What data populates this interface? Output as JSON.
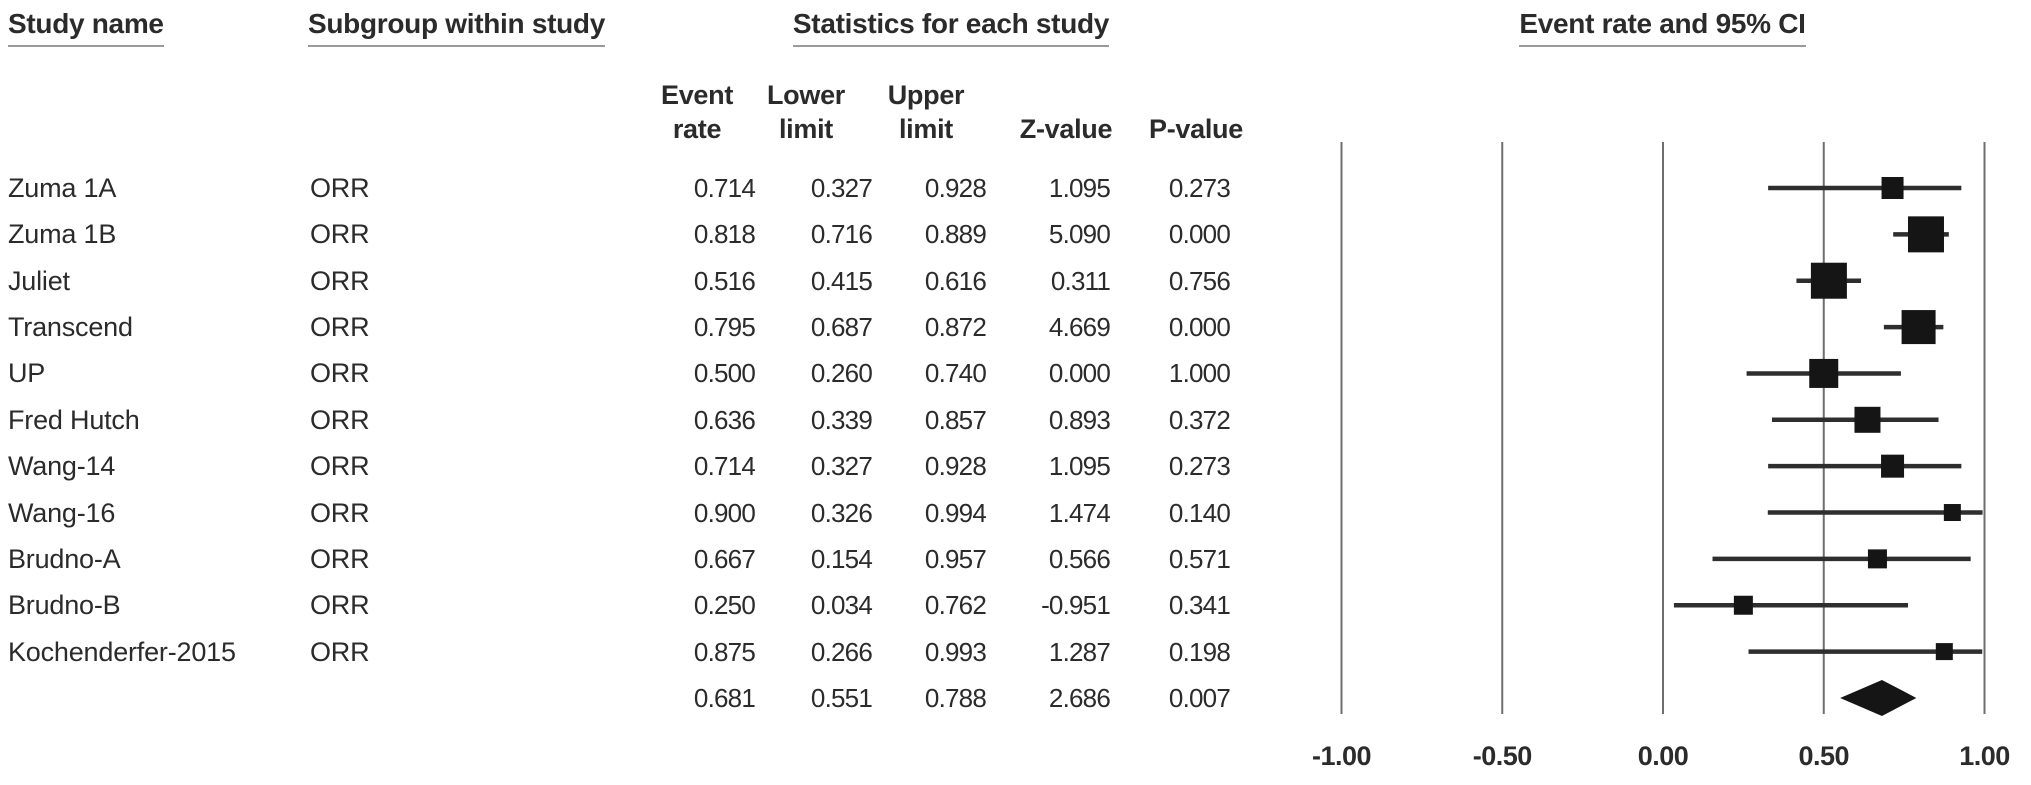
{
  "figure": {
    "columns": {
      "study_name": "Study name",
      "subgroup": "Subgroup within study",
      "statistics": "Statistics for each study",
      "plot": "Event rate and 95% CI"
    },
    "stat_headers": [
      {
        "line1": "Event",
        "line2": "rate"
      },
      {
        "line1": "Lower",
        "line2": "limit"
      },
      {
        "line1": "Upper",
        "line2": "limit"
      },
      {
        "line1": "",
        "line2": "Z-value"
      },
      {
        "line1": "",
        "line2": "P-value"
      }
    ],
    "style": {
      "ink": "#1f1f1f",
      "marker_fill": "#151515",
      "ci_line": "#2e2e2e",
      "gridline": "#6e6e6e",
      "underline": "#9a9a9a",
      "background": "#ffffff"
    }
  },
  "chart_data": {
    "type": "forest",
    "title": "Event rate and 95% CI",
    "x_axis": {
      "label": "",
      "range": [
        -1.0,
        1.0
      ],
      "ticks": [
        -1.0,
        -0.5,
        0.0,
        0.5,
        1.0
      ],
      "tick_labels": [
        "-1.00",
        "-0.50",
        "0.00",
        "0.50",
        "1.00"
      ],
      "grid": true
    },
    "studies": [
      {
        "study": "Zuma 1A",
        "subgroup": "ORR",
        "event_rate": 0.714,
        "lower": 0.327,
        "upper": 0.928,
        "z": 1.095,
        "p": 0.273,
        "square_size_px": 22
      },
      {
        "study": "Zuma 1B",
        "subgroup": "ORR",
        "event_rate": 0.818,
        "lower": 0.716,
        "upper": 0.889,
        "z": 5.09,
        "p": 0.0,
        "square_size_px": 36
      },
      {
        "study": "Juliet",
        "subgroup": "ORR",
        "event_rate": 0.516,
        "lower": 0.415,
        "upper": 0.616,
        "z": 0.311,
        "p": 0.756,
        "square_size_px": 36
      },
      {
        "study": "Transcend",
        "subgroup": "ORR",
        "event_rate": 0.795,
        "lower": 0.687,
        "upper": 0.872,
        "z": 4.669,
        "p": 0.0,
        "square_size_px": 34
      },
      {
        "study": "UP",
        "subgroup": "ORR",
        "event_rate": 0.5,
        "lower": 0.26,
        "upper": 0.74,
        "z": 0.0,
        "p": 1.0,
        "square_size_px": 29
      },
      {
        "study": "Fred Hutch",
        "subgroup": "ORR",
        "event_rate": 0.636,
        "lower": 0.339,
        "upper": 0.857,
        "z": 0.893,
        "p": 0.372,
        "square_size_px": 26
      },
      {
        "study": "Wang-14",
        "subgroup": "ORR",
        "event_rate": 0.714,
        "lower": 0.327,
        "upper": 0.928,
        "z": 1.095,
        "p": 0.273,
        "square_size_px": 23
      },
      {
        "study": "Wang-16",
        "subgroup": "ORR",
        "event_rate": 0.9,
        "lower": 0.326,
        "upper": 0.994,
        "z": 1.474,
        "p": 0.14,
        "square_size_px": 17
      },
      {
        "study": "Brudno-A",
        "subgroup": "ORR",
        "event_rate": 0.667,
        "lower": 0.154,
        "upper": 0.957,
        "z": 0.566,
        "p": 0.571,
        "square_size_px": 19
      },
      {
        "study": "Brudno-B",
        "subgroup": "ORR",
        "event_rate": 0.25,
        "lower": 0.034,
        "upper": 0.762,
        "z": -0.951,
        "p": 0.341,
        "square_size_px": 19
      },
      {
        "study": "Kochenderfer-2015",
        "subgroup": "ORR",
        "event_rate": 0.875,
        "lower": 0.266,
        "upper": 0.993,
        "z": 1.287,
        "p": 0.198,
        "square_size_px": 17
      }
    ],
    "summary": {
      "study": "",
      "subgroup": "",
      "event_rate": 0.681,
      "lower": 0.551,
      "upper": 0.788,
      "z": 2.686,
      "p": 0.007,
      "marker": "diamond"
    }
  }
}
